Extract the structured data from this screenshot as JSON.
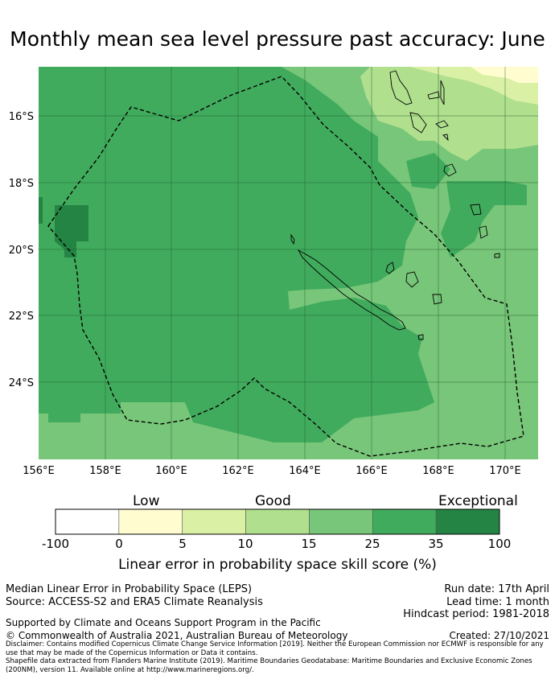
{
  "title": "Monthly mean sea level pressure past accuracy: June",
  "map": {
    "lon_ticks": [
      "156°E",
      "158°E",
      "160°E",
      "162°E",
      "164°E",
      "166°E",
      "168°E",
      "170°E"
    ],
    "lat_ticks": [
      "16°S",
      "18°S",
      "20°S",
      "22°S",
      "24°S"
    ],
    "extent": {
      "lon_min": 156,
      "lon_max": 171,
      "lat_min": -26.3,
      "lat_max": -14.5
    },
    "grid": true,
    "boundary_style": "dashed",
    "region": "New Caledonia EEZ"
  },
  "colorbar": {
    "categories": [
      "Low",
      "Good",
      "Exceptional"
    ],
    "ticks": [
      "-100",
      "0",
      "5",
      "10",
      "15",
      "25",
      "35",
      "100"
    ],
    "colors": [
      "#ffffff",
      "#fffdd0",
      "#daf0a4",
      "#b0df8e",
      "#78c679",
      "#41ab5d",
      "#238443"
    ],
    "label": "Linear error in probability space skill score (%)"
  },
  "info": {
    "line1": "Median Linear Error in Probability Space (LEPS)",
    "line2": "Source: ACCESS-S2 and ERA5 Climate Reanalysis",
    "run_date": "Run date: 17th April",
    "lead_time": "Lead time: 1 month",
    "hindcast": "Hindcast period: 1981-2018",
    "support": "Supported by Climate and Oceans Support Program in the Pacific",
    "copyright": "© Commonwealth of Australia 2021, Australian Bureau of Meteorology",
    "created": "Created: 27/10/2021",
    "disclaimer": "Disclaimer: Contains modified Copernicus Climate Change Service Information [2019]. Neither the European Commission nor ECMWF is responsible for any use that may be made of the Copernicus Information or Data it contains.",
    "shapefile": "Shapefile data extracted from Flanders Marine Institute (2019). Maritime Boundaries Geodatabase: Maritime Boundaries and Exclusive Economic Zones (200NM), version 11. Available online at http://www.marineregions.org/."
  }
}
